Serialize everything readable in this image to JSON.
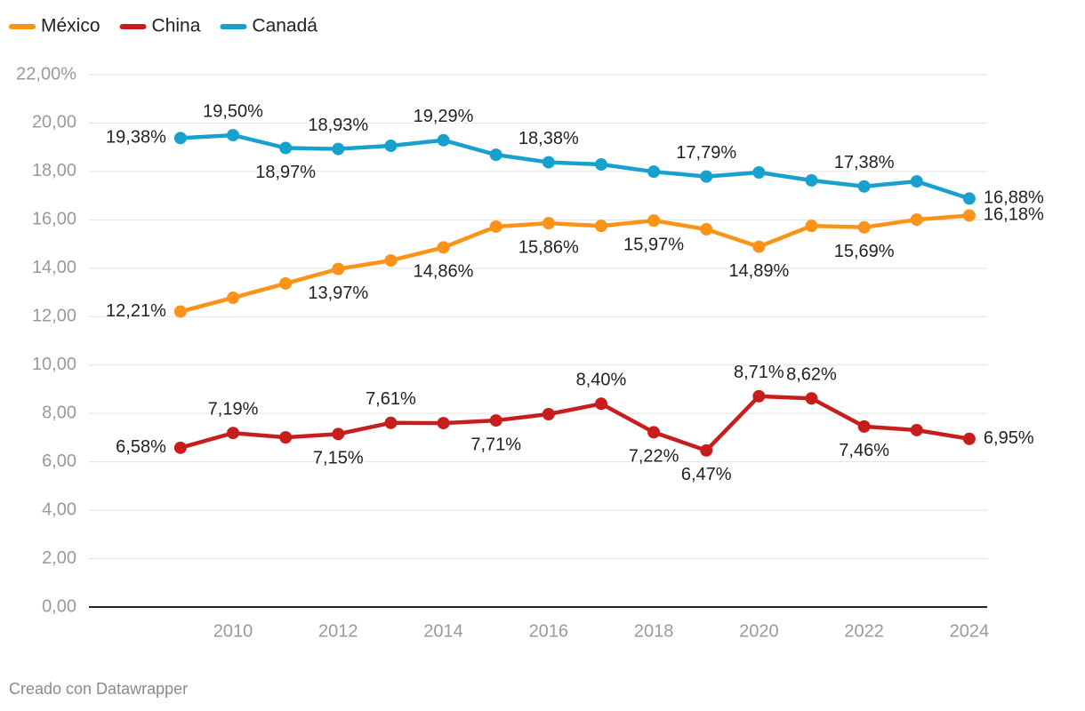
{
  "chart_data": {
    "type": "line",
    "x": [
      2009,
      2010,
      2011,
      2012,
      2013,
      2014,
      2015,
      2016,
      2017,
      2018,
      2019,
      2020,
      2021,
      2022,
      2023,
      2024
    ],
    "series": [
      {
        "name": "México",
        "color": "#fa9318",
        "values": [
          12.21,
          12.78,
          13.37,
          13.97,
          14.32,
          14.86,
          15.72,
          15.86,
          15.75,
          15.97,
          15.61,
          14.89,
          15.75,
          15.69,
          16.01,
          16.18
        ],
        "value_labels": [
          "12,21%",
          null,
          null,
          "13,97%",
          null,
          "14,86%",
          null,
          "15,86%",
          null,
          "15,97%",
          null,
          "14,89%",
          null,
          "15,69%",
          null,
          "16,18%"
        ]
      },
      {
        "name": "China",
        "color": "#c71e1d",
        "values": [
          6.58,
          7.19,
          7.01,
          7.15,
          7.61,
          7.6,
          7.71,
          7.97,
          8.4,
          7.22,
          6.47,
          8.71,
          8.62,
          7.46,
          7.31,
          6.95
        ],
        "value_labels": [
          "6,58%",
          "7,19%",
          null,
          "7,15%",
          "7,61%",
          null,
          "7,71%",
          null,
          "8,40%",
          "7,22%",
          "6,47%",
          "8,71%",
          "8,62%",
          "7,46%",
          null,
          "6,95%"
        ]
      },
      {
        "name": "Canadá",
        "color": "#18a1cd",
        "values": [
          19.38,
          19.5,
          18.97,
          18.93,
          19.06,
          19.29,
          18.69,
          18.38,
          18.29,
          17.99,
          17.79,
          17.96,
          17.63,
          17.38,
          17.59,
          16.88
        ],
        "value_labels": [
          "19,38%",
          "19,50%",
          "18,97%",
          "18,93%",
          null,
          "19,29%",
          null,
          "18,38%",
          null,
          null,
          "17,79%",
          null,
          null,
          "17,38%",
          null,
          "16,88%"
        ]
      }
    ],
    "xlim": [
      2007.26,
      2024.34
    ],
    "xticks": [
      2010,
      2012,
      2014,
      2016,
      2018,
      2020,
      2022,
      2024
    ],
    "ylim": [
      0,
      22
    ],
    "yticks": [
      {
        "value": 0,
        "label": "0,00"
      },
      {
        "value": 2,
        "label": "2,00"
      },
      {
        "value": 4,
        "label": "4,00"
      },
      {
        "value": 6,
        "label": "6,00"
      },
      {
        "value": 8,
        "label": "8,00"
      },
      {
        "value": 10,
        "label": "10,00"
      },
      {
        "value": 12,
        "label": "12,00"
      },
      {
        "value": 14,
        "label": "14,00"
      },
      {
        "value": 16,
        "label": "16,00"
      },
      {
        "value": 18,
        "label": "18,00"
      },
      {
        "value": 20,
        "label": "20,00"
      },
      {
        "value": 22,
        "label": "22,00%"
      }
    ],
    "grid": true,
    "legend": "top-left",
    "footer": "Creado con Datawrapper"
  }
}
